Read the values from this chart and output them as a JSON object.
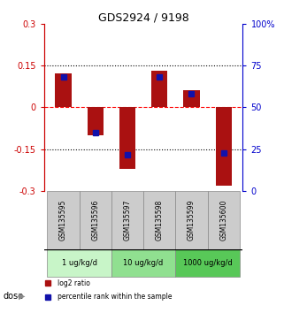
{
  "title": "GDS2924 / 9198",
  "samples": [
    "GSM135595",
    "GSM135596",
    "GSM135597",
    "GSM135598",
    "GSM135599",
    "GSM135600"
  ],
  "log2_ratios": [
    0.12,
    -0.1,
    -0.22,
    0.13,
    0.06,
    -0.28
  ],
  "percentile_ranks": [
    0.68,
    0.35,
    0.22,
    0.68,
    0.58,
    0.23
  ],
  "bar_color": "#aa1111",
  "marker_color": "#1111aa",
  "ylim_left": [
    -0.3,
    0.3
  ],
  "ylim_right": [
    0,
    1.0
  ],
  "yticks_left": [
    -0.3,
    -0.15,
    0,
    0.15,
    0.3
  ],
  "ytick_labels_left": [
    "-0.3",
    "-0.15",
    "0",
    "0.15",
    "0.3"
  ],
  "yticks_right": [
    0,
    0.25,
    0.5,
    0.75,
    1.0
  ],
  "ytick_labels_right": [
    "0",
    "25",
    "50",
    "75",
    "100%"
  ],
  "hlines_dotted": [
    0.15,
    -0.15
  ],
  "hline_dashed_red": 0,
  "dose_configs": [
    {
      "start": 0,
      "end": 2,
      "color": "#c8f5c8",
      "label": "1 ug/kg/d"
    },
    {
      "start": 2,
      "end": 4,
      "color": "#90e090",
      "label": "10 ug/kg/d"
    },
    {
      "start": 4,
      "end": 6,
      "color": "#58c858",
      "label": "1000 ug/kg/d"
    }
  ],
  "dose_label": "dose",
  "legend_items": [
    {
      "label": "log2 ratio",
      "color": "#aa1111"
    },
    {
      "label": "percentile rank within the sample",
      "color": "#1111aa"
    }
  ],
  "bar_width": 0.5,
  "left_axis_color": "#cc0000",
  "right_axis_color": "#0000cc",
  "background_color": "#ffffff",
  "sample_box_color": "#cccccc",
  "sample_box_edge": "#888888",
  "marker_size": 5,
  "tick_fontsize": 7,
  "title_fontsize": 9
}
